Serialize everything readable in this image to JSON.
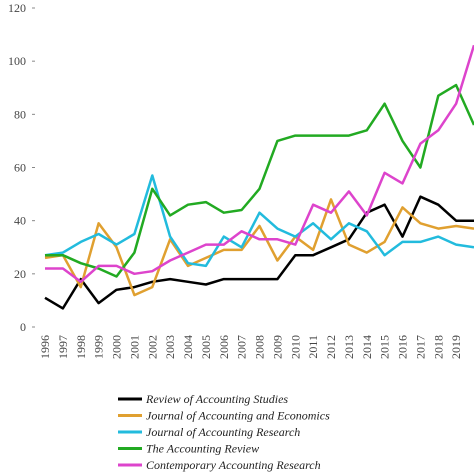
{
  "chart_data": {
    "type": "line",
    "categories": [
      "1996",
      "1997",
      "1998",
      "1999",
      "2000",
      "2001",
      "2002",
      "2003",
      "2004",
      "2005",
      "2006",
      "2007",
      "2008",
      "2009",
      "2010",
      "2011",
      "2012",
      "2013",
      "2014",
      "2015",
      "2016",
      "2017",
      "2018",
      "2019",
      null
    ],
    "series": [
      {
        "name": "Review of Accounting Studies",
        "color": "#000000",
        "values": [
          11,
          7,
          18,
          9,
          14,
          15,
          17,
          18,
          17,
          16,
          18,
          18,
          18,
          18,
          27,
          27,
          30,
          33,
          43,
          46,
          34,
          49,
          46,
          40,
          40
        ]
      },
      {
        "name": "Journal of Accounting and Economics",
        "color": "#e0a030",
        "values": [
          26,
          27,
          15,
          39,
          30,
          12,
          15,
          33,
          23,
          26,
          29,
          29,
          38,
          25,
          34,
          29,
          48,
          31,
          28,
          32,
          45,
          39,
          37,
          38,
          37
        ]
      },
      {
        "name": "Journal of Accounting Research",
        "color": "#22bbdd",
        "values": [
          27,
          28,
          32,
          35,
          31,
          35,
          57,
          34,
          24,
          23,
          34,
          30,
          43,
          37,
          34,
          39,
          33,
          39,
          36,
          27,
          32,
          32,
          34,
          31,
          30
        ]
      },
      {
        "name": "The Accounting Review",
        "color": "#22aa22",
        "values": [
          27,
          27,
          24,
          22,
          19,
          28,
          52,
          42,
          46,
          47,
          43,
          44,
          52,
          70,
          72,
          72,
          72,
          72,
          74,
          84,
          70,
          60,
          87,
          91,
          76
        ]
      },
      {
        "name": "Contemporary Accounting Research",
        "color": "#dd44cc",
        "values": [
          22,
          22,
          17,
          23,
          23,
          20,
          21,
          25,
          28,
          31,
          31,
          36,
          33,
          33,
          31,
          46,
          43,
          51,
          42,
          58,
          54,
          69,
          74,
          84,
          106
        ]
      }
    ],
    "ylim": [
      0,
      120
    ],
    "yticks": [
      0,
      20,
      40,
      60,
      80,
      100,
      120
    ]
  }
}
